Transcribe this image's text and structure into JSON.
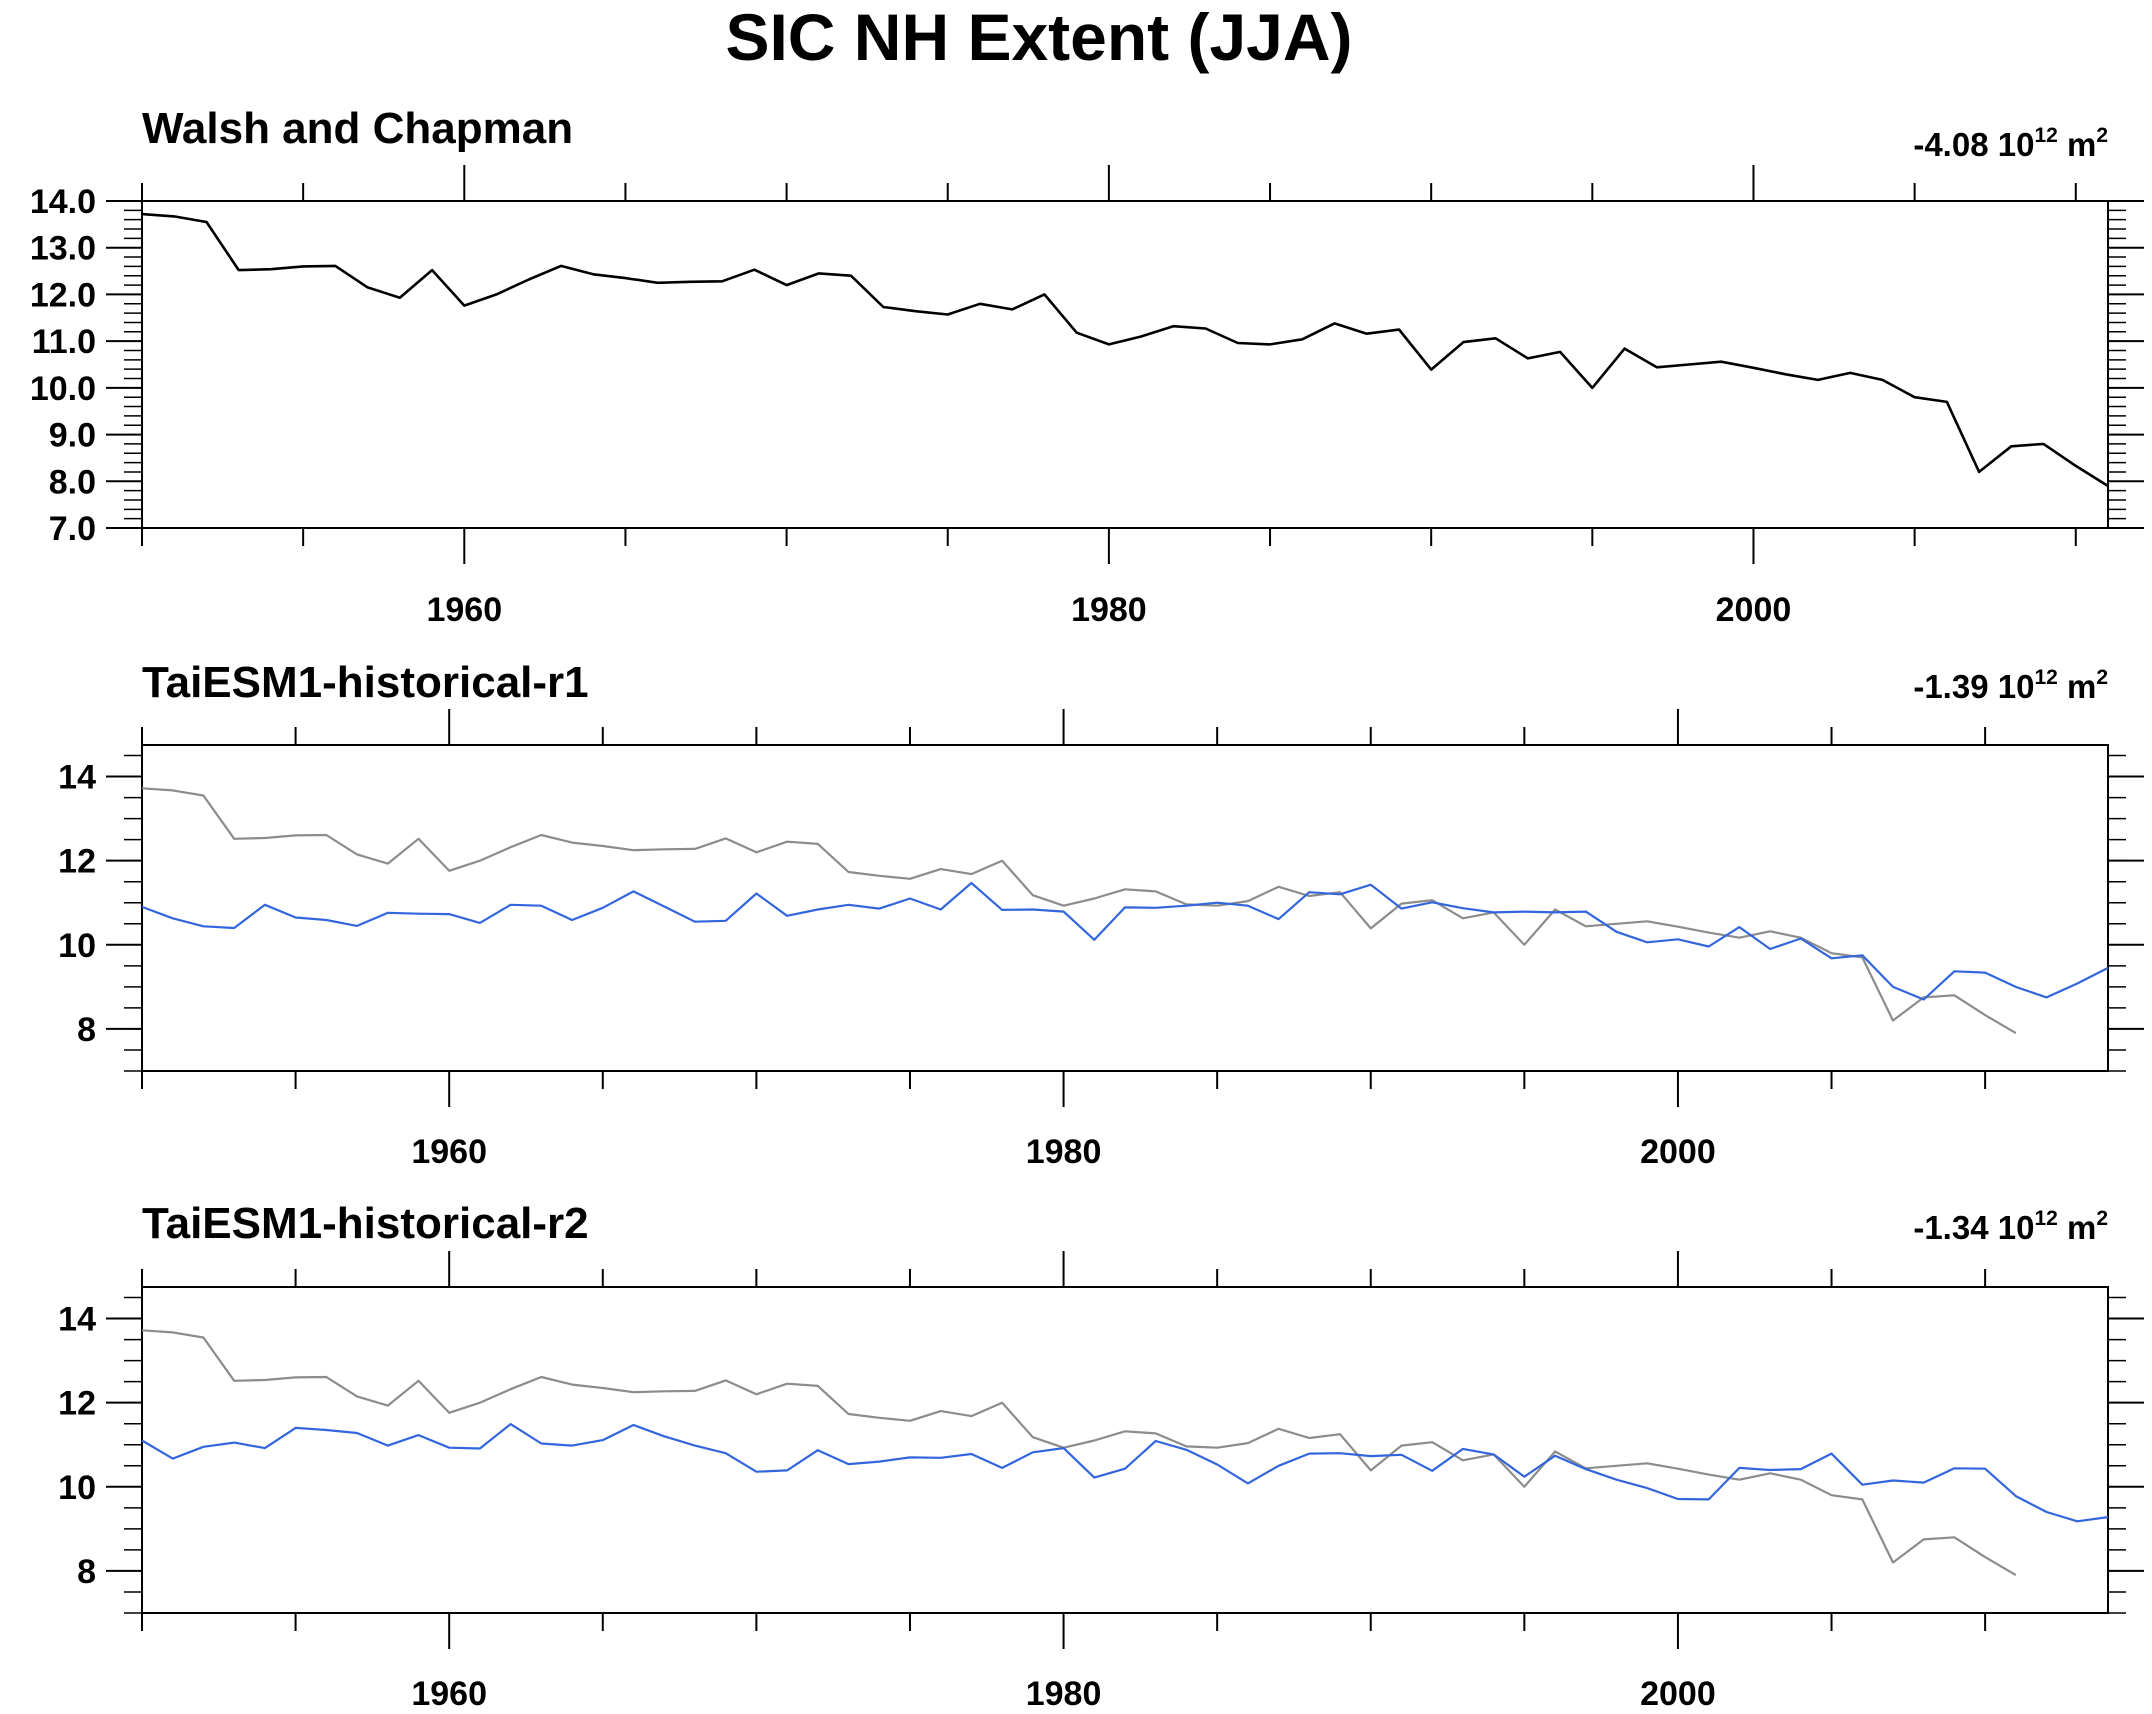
{
  "figure": {
    "title": "SIC NH Extent (JJA)",
    "trend_unit_base": "10",
    "trend_unit_exp": "12",
    "trend_unit_m": "m",
    "trend_unit_m_exp": "2",
    "colors": {
      "observation": "#000000",
      "observation_ref": "#8c8c8c",
      "model": "#3366dd"
    }
  },
  "chart_data": [
    {
      "type": "line",
      "title": "Walsh and Chapman",
      "trend_value": "-4.08",
      "xlim": [
        1950,
        2011
      ],
      "ylim": [
        7.0,
        14.0
      ],
      "x_ticks": [
        1960,
        1980,
        2000
      ],
      "y_ticks": [
        7.0,
        8.0,
        9.0,
        10.0,
        11.0,
        12.0,
        13.0,
        14.0
      ],
      "y_tick_labels": [
        "7.0",
        "8.0",
        "9.0",
        "10.0",
        "11.0",
        "12.0",
        "13.0",
        "14.0"
      ],
      "series": [
        {
          "key": "obs",
          "color": "#000000",
          "x": [
            1950,
            1951,
            1952,
            1953,
            1954,
            1955,
            1956,
            1957,
            1958,
            1959,
            1960,
            1961,
            1962,
            1963,
            1964,
            1965,
            1966,
            1967,
            1968,
            1969,
            1970,
            1971,
            1972,
            1973,
            1974,
            1975,
            1976,
            1977,
            1978,
            1979,
            1980,
            1981,
            1982,
            1983,
            1984,
            1985,
            1986,
            1987,
            1988,
            1989,
            1990,
            1991,
            1992,
            1993,
            1994,
            1995,
            1996,
            1997,
            1998,
            1999,
            2000,
            2001,
            2002,
            2003,
            2004,
            2005,
            2006,
            2007,
            2008,
            2009,
            2010,
            2011
          ],
          "y": [
            13.72,
            13.67,
            13.55,
            12.52,
            12.54,
            12.6,
            12.61,
            12.15,
            11.93,
            12.52,
            11.76,
            12.0,
            12.32,
            12.61,
            12.43,
            12.35,
            12.25,
            12.27,
            12.28,
            12.53,
            12.2,
            12.45,
            12.4,
            11.73,
            11.64,
            11.57,
            11.8,
            11.68,
            12.0,
            11.18,
            10.93,
            11.1,
            11.32,
            11.27,
            10.96,
            10.93,
            11.04,
            11.38,
            11.16,
            11.25,
            10.39,
            10.98,
            11.06,
            10.63,
            10.77,
            10.0,
            10.84,
            10.44,
            10.5,
            10.56,
            10.43,
            10.29,
            10.17,
            10.32,
            10.17,
            9.8,
            9.7,
            8.2,
            8.75,
            8.8,
            8.33,
            7.9
          ]
        }
      ]
    },
    {
      "type": "line",
      "title": "TaiESM1-historical-r1",
      "trend_value": "-1.39",
      "xlim": [
        1950,
        2014
      ],
      "ylim": [
        7.0,
        14.75
      ],
      "x_ticks": [
        1960,
        1980,
        2000
      ],
      "y_ticks": [
        8,
        10,
        12,
        14
      ],
      "y_tick_labels": [
        "8",
        "10",
        "12",
        "14"
      ],
      "series": [
        {
          "key": "obs_ref",
          "color": "#8c8c8c",
          "x": [
            1950,
            1951,
            1952,
            1953,
            1954,
            1955,
            1956,
            1957,
            1958,
            1959,
            1960,
            1961,
            1962,
            1963,
            1964,
            1965,
            1966,
            1967,
            1968,
            1969,
            1970,
            1971,
            1972,
            1973,
            1974,
            1975,
            1976,
            1977,
            1978,
            1979,
            1980,
            1981,
            1982,
            1983,
            1984,
            1985,
            1986,
            1987,
            1988,
            1989,
            1990,
            1991,
            1992,
            1993,
            1994,
            1995,
            1996,
            1997,
            1998,
            1999,
            2000,
            2001,
            2002,
            2003,
            2004,
            2005,
            2006,
            2007,
            2008,
            2009,
            2010,
            2011
          ],
          "y": [
            13.72,
            13.67,
            13.55,
            12.52,
            12.54,
            12.6,
            12.61,
            12.15,
            11.93,
            12.52,
            11.76,
            12.0,
            12.32,
            12.61,
            12.43,
            12.35,
            12.25,
            12.27,
            12.28,
            12.53,
            12.2,
            12.45,
            12.4,
            11.73,
            11.64,
            11.57,
            11.8,
            11.68,
            12.0,
            11.18,
            10.93,
            11.1,
            11.32,
            11.27,
            10.96,
            10.93,
            11.04,
            11.38,
            11.16,
            11.25,
            10.39,
            10.98,
            11.06,
            10.63,
            10.77,
            10.0,
            10.84,
            10.44,
            10.5,
            10.56,
            10.43,
            10.29,
            10.17,
            10.32,
            10.17,
            9.8,
            9.7,
            8.2,
            8.75,
            8.8,
            8.33,
            7.9
          ]
        },
        {
          "key": "model",
          "color": "#3366dd",
          "x": [
            1950,
            1951,
            1952,
            1953,
            1954,
            1955,
            1956,
            1957,
            1958,
            1959,
            1960,
            1961,
            1962,
            1963,
            1964,
            1965,
            1966,
            1967,
            1968,
            1969,
            1970,
            1971,
            1972,
            1973,
            1974,
            1975,
            1976,
            1977,
            1978,
            1979,
            1980,
            1981,
            1982,
            1983,
            1984,
            1985,
            1986,
            1987,
            1988,
            1989,
            1990,
            1991,
            1992,
            1993,
            1994,
            1995,
            1996,
            1997,
            1998,
            1999,
            2000,
            2001,
            2002,
            2003,
            2004,
            2005,
            2006,
            2007,
            2008,
            2009,
            2010,
            2011,
            2012,
            2013,
            2014
          ],
          "y": [
            10.9,
            10.63,
            10.44,
            10.4,
            10.95,
            10.65,
            10.59,
            10.45,
            10.76,
            10.74,
            10.73,
            10.52,
            10.95,
            10.93,
            10.59,
            10.88,
            11.27,
            10.91,
            10.55,
            10.57,
            11.22,
            10.69,
            10.84,
            10.95,
            10.86,
            11.1,
            10.84,
            11.47,
            10.83,
            10.84,
            10.79,
            10.12,
            10.89,
            10.88,
            10.93,
            11.0,
            10.93,
            10.61,
            11.25,
            11.2,
            11.43,
            10.86,
            11.01,
            10.87,
            10.77,
            10.79,
            10.77,
            10.79,
            10.31,
            10.06,
            10.13,
            9.96,
            10.42,
            9.9,
            10.15,
            9.68,
            9.75,
            9.0,
            8.7,
            9.37,
            9.34,
            9.0,
            8.75,
            9.08,
            9.45
          ]
        }
      ]
    },
    {
      "type": "line",
      "title": "TaiESM1-historical-r2",
      "trend_value": "-1.34",
      "xlim": [
        1950,
        2014
      ],
      "ylim": [
        7.0,
        14.75
      ],
      "x_ticks": [
        1960,
        1980,
        2000
      ],
      "y_ticks": [
        8,
        10,
        12,
        14
      ],
      "y_tick_labels": [
        "8",
        "10",
        "12",
        "14"
      ],
      "series": [
        {
          "key": "obs_ref",
          "color": "#8c8c8c",
          "x": [
            1950,
            1951,
            1952,
            1953,
            1954,
            1955,
            1956,
            1957,
            1958,
            1959,
            1960,
            1961,
            1962,
            1963,
            1964,
            1965,
            1966,
            1967,
            1968,
            1969,
            1970,
            1971,
            1972,
            1973,
            1974,
            1975,
            1976,
            1977,
            1978,
            1979,
            1980,
            1981,
            1982,
            1983,
            1984,
            1985,
            1986,
            1987,
            1988,
            1989,
            1990,
            1991,
            1992,
            1993,
            1994,
            1995,
            1996,
            1997,
            1998,
            1999,
            2000,
            2001,
            2002,
            2003,
            2004,
            2005,
            2006,
            2007,
            2008,
            2009,
            2010,
            2011
          ],
          "y": [
            13.72,
            13.67,
            13.55,
            12.52,
            12.54,
            12.6,
            12.61,
            12.15,
            11.93,
            12.52,
            11.76,
            12.0,
            12.32,
            12.61,
            12.43,
            12.35,
            12.25,
            12.27,
            12.28,
            12.53,
            12.2,
            12.45,
            12.4,
            11.73,
            11.64,
            11.57,
            11.8,
            11.68,
            12.0,
            11.18,
            10.93,
            11.1,
            11.32,
            11.27,
            10.96,
            10.93,
            11.04,
            11.38,
            11.16,
            11.25,
            10.39,
            10.98,
            11.06,
            10.63,
            10.77,
            10.0,
            10.84,
            10.44,
            10.5,
            10.56,
            10.43,
            10.29,
            10.17,
            10.32,
            10.17,
            9.8,
            9.7,
            8.2,
            8.75,
            8.8,
            8.33,
            7.9
          ]
        },
        {
          "key": "model",
          "color": "#3366dd",
          "x": [
            1950,
            1951,
            1952,
            1953,
            1954,
            1955,
            1956,
            1957,
            1958,
            1959,
            1960,
            1961,
            1962,
            1963,
            1964,
            1965,
            1966,
            1967,
            1968,
            1969,
            1970,
            1971,
            1972,
            1973,
            1974,
            1975,
            1976,
            1977,
            1978,
            1979,
            1980,
            1981,
            1982,
            1983,
            1984,
            1985,
            1986,
            1987,
            1988,
            1989,
            1990,
            1991,
            1992,
            1993,
            1994,
            1995,
            1996,
            1997,
            1998,
            1999,
            2000,
            2001,
            2002,
            2003,
            2004,
            2005,
            2006,
            2007,
            2008,
            2009,
            2010,
            2011,
            2012,
            2013,
            2014
          ],
          "y": [
            11.1,
            10.67,
            10.95,
            11.05,
            10.92,
            11.4,
            11.35,
            11.28,
            10.98,
            11.23,
            10.93,
            10.91,
            11.49,
            11.03,
            10.98,
            11.11,
            11.47,
            11.2,
            10.98,
            10.8,
            10.36,
            10.39,
            10.87,
            10.54,
            10.6,
            10.7,
            10.69,
            10.78,
            10.45,
            10.82,
            10.92,
            10.22,
            10.43,
            11.09,
            10.88,
            10.53,
            10.08,
            10.5,
            10.79,
            10.8,
            10.73,
            10.76,
            10.38,
            10.9,
            10.77,
            10.24,
            10.74,
            10.42,
            10.17,
            9.97,
            9.71,
            9.7,
            10.45,
            10.4,
            10.42,
            10.79,
            10.05,
            10.15,
            10.1,
            10.44,
            10.43,
            9.78,
            9.4,
            9.18,
            9.28
          ]
        }
      ]
    }
  ]
}
